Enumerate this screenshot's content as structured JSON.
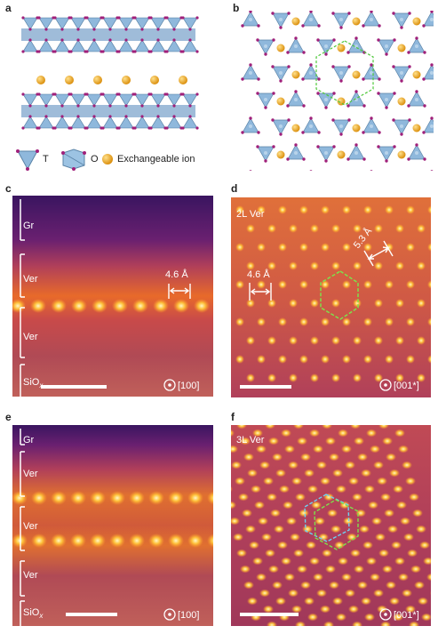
{
  "panel_labels": [
    "a",
    "b",
    "c",
    "d",
    "e",
    "f"
  ],
  "legend": {
    "t_label": "T",
    "o_label": "O",
    "ion_label": "Exchangeable ion"
  },
  "panel_c": {
    "layers": [
      "Gr",
      "Ver",
      "Ver",
      "SiOx"
    ],
    "distance": "4.6 Å",
    "zone_axis": "[100]"
  },
  "panel_d": {
    "title": "2L Ver",
    "distance_left": "4.6 Å",
    "distance_right": "5.3 Å",
    "zone_axis": "[001*]"
  },
  "panel_e": {
    "layers": [
      "Gr",
      "Ver",
      "Ver",
      "Ver",
      "SiOx"
    ],
    "zone_axis": "[100]"
  },
  "panel_f": {
    "title": "3L Ver",
    "zone_axis": "[001*]"
  },
  "colors": {
    "tetra": "#8fb8dc",
    "oxygen": "#a0207a",
    "ion": "#e69a10",
    "stem_dark": "#3a1560",
    "stem_mid": "#b03f5a",
    "stem_bright": "#ffd24a",
    "hex_green": "#7fe04a",
    "hex_cyan": "#6fd0f0"
  }
}
